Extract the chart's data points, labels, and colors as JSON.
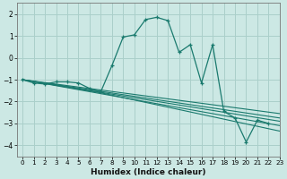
{
  "xlabel": "Humidex (Indice chaleur)",
  "background_color": "#cce8e4",
  "grid_color": "#aacfca",
  "line_color": "#1a7a6e",
  "xlim": [
    -0.5,
    23
  ],
  "ylim": [
    -4.5,
    2.5
  ],
  "xticks": [
    0,
    1,
    2,
    3,
    4,
    5,
    6,
    7,
    8,
    9,
    10,
    11,
    12,
    13,
    14,
    15,
    16,
    17,
    18,
    19,
    20,
    21,
    22,
    23
  ],
  "yticks": [
    -4,
    -3,
    -2,
    -1,
    0,
    1,
    2
  ],
  "main_line": {
    "x": [
      0,
      1,
      2,
      3,
      4,
      5,
      6,
      7,
      8,
      9,
      10,
      11,
      12,
      13,
      14,
      15,
      16,
      17,
      18,
      19,
      20,
      21,
      22
    ],
    "y": [
      -1.0,
      -1.15,
      -1.2,
      -1.1,
      -1.1,
      -1.15,
      -1.4,
      -1.55,
      -0.35,
      0.95,
      1.05,
      1.75,
      1.85,
      1.7,
      0.25,
      0.6,
      -1.15,
      0.6,
      -2.45,
      -2.75,
      -3.85,
      -2.85,
      -3.0
    ]
  },
  "extra_lines": [
    {
      "x": [
        0,
        23
      ],
      "y": [
        -1.0,
        -2.55
      ]
    },
    {
      "x": [
        0,
        23
      ],
      "y": [
        -1.0,
        -2.75
      ]
    },
    {
      "x": [
        0,
        23
      ],
      "y": [
        -1.0,
        -2.9
      ]
    },
    {
      "x": [
        0,
        23
      ],
      "y": [
        -1.0,
        -3.1
      ]
    },
    {
      "x": [
        0,
        7,
        23
      ],
      "y": [
        -1.0,
        -1.6,
        -3.35
      ]
    }
  ]
}
